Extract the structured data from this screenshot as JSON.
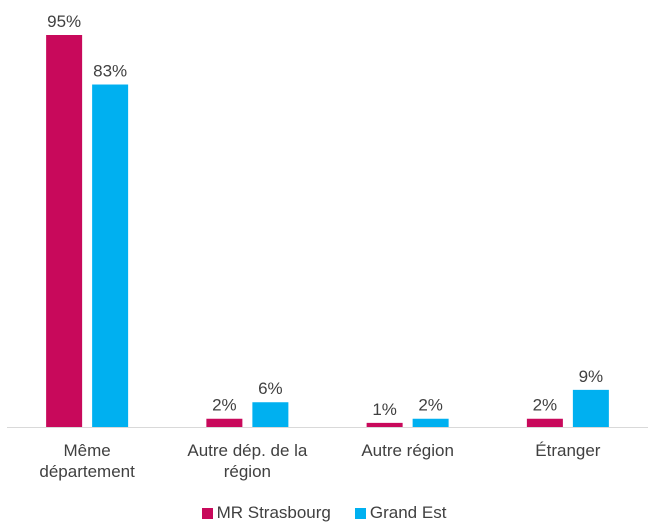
{
  "chart_data": {
    "type": "bar",
    "categories": [
      "Même département",
      "Autre dép. de la région",
      "Autre région",
      "Étranger"
    ],
    "series": [
      {
        "name": "MR Strasbourg",
        "color": "#c8095b",
        "values": [
          95,
          2,
          1,
          2
        ],
        "value_labels": [
          "95%",
          "2%",
          "1%",
          "2%"
        ]
      },
      {
        "name": "Grand Est",
        "color": "#00b0f0",
        "values": [
          83,
          6,
          2,
          9
        ],
        "value_labels": [
          "83%",
          "6%",
          "2%",
          "9%"
        ]
      }
    ],
    "legend": "bottom"
  }
}
